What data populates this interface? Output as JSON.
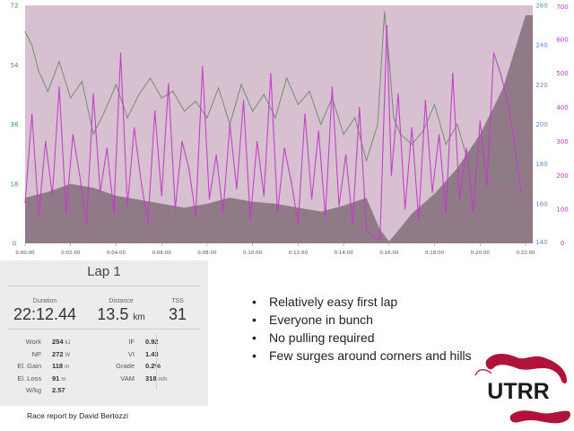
{
  "chart_data": {
    "type": "area",
    "x_ticks": [
      "0:00:00",
      "0:02:00",
      "0:04:00",
      "0:06:00",
      "0:08:00",
      "0:10:00",
      "0:12:00",
      "0:14:00",
      "0:16:00",
      "0:18:00",
      "0:20:00",
      "0:22:00"
    ],
    "left_axis": {
      "ticks": [
        "0",
        "18",
        "36",
        "54",
        "72"
      ],
      "range": [
        0,
        72
      ],
      "color": "#3c9a4a"
    },
    "right_axis_1": {
      "ticks": [
        "140",
        "160",
        "180",
        "200",
        "220",
        "240",
        "260"
      ],
      "range": [
        140,
        260
      ],
      "color": "#5a8ed0"
    },
    "right_axis_2": {
      "ticks": [
        "0",
        "100",
        "200",
        "300",
        "400",
        "500",
        "600",
        "700"
      ],
      "range": [
        0,
        700
      ],
      "color": "#c23ac9"
    },
    "series": [
      {
        "color": "#6e8a6a",
        "axis": "left",
        "x_minutes": [
          0,
          0.3,
          0.6,
          1,
          1.5,
          2,
          2.5,
          3,
          3.5,
          4,
          4.5,
          5,
          5.5,
          6,
          6.5,
          7,
          7.5,
          8,
          8.5,
          9,
          9.5,
          10,
          10.5,
          11,
          11.5,
          12,
          12.5,
          13,
          13.5,
          14,
          14.5,
          15,
          15.5,
          15.8,
          16,
          16.2,
          16.5,
          17,
          17.5,
          18,
          18.5,
          19,
          19.5,
          20,
          20.5,
          21,
          21.5,
          22
        ],
        "values": [
          64,
          60,
          52,
          46,
          55,
          44,
          49,
          33,
          40,
          48,
          38,
          45,
          50,
          44,
          46,
          40,
          43,
          38,
          47,
          36,
          48,
          40,
          45,
          38,
          50,
          42,
          46,
          36,
          44,
          33,
          38,
          25,
          36,
          70,
          56,
          38,
          33,
          30,
          34,
          42,
          30,
          36,
          24,
          28,
          22,
          19,
          21,
          28
        ]
      },
      {
        "color": "#c23ac9",
        "axis": "right_2",
        "x_minutes": [
          0,
          0.3,
          0.6,
          0.9,
          1.2,
          1.5,
          1.8,
          2.1,
          2.4,
          2.7,
          3,
          3.3,
          3.6,
          3.9,
          4.2,
          4.5,
          4.8,
          5.1,
          5.4,
          5.7,
          6,
          6.3,
          6.6,
          6.9,
          7.2,
          7.5,
          7.8,
          8.1,
          8.4,
          8.7,
          9,
          9.3,
          9.6,
          9.9,
          10.2,
          10.5,
          10.8,
          11.1,
          11.4,
          11.7,
          12,
          12.3,
          12.6,
          12.9,
          13.2,
          13.5,
          13.8,
          14.1,
          14.4,
          14.7,
          15,
          15.3,
          15.6,
          15.9,
          16.1,
          16.4,
          16.7,
          17,
          17.3,
          17.6,
          17.9,
          18.2,
          18.5,
          18.8,
          19.1,
          19.4,
          19.7,
          20,
          20.3,
          20.6,
          20.9,
          21.2,
          21.5,
          21.8
        ],
        "values": [
          120,
          380,
          80,
          300,
          140,
          460,
          90,
          320,
          200,
          60,
          440,
          150,
          280,
          90,
          560,
          110,
          340,
          180,
          60,
          390,
          140,
          470,
          100,
          300,
          220,
          80,
          520,
          130,
          260,
          90,
          350,
          160,
          420,
          70,
          300,
          140,
          500,
          90,
          280,
          180,
          60,
          380,
          130,
          330,
          80,
          460,
          110,
          260,
          60,
          400,
          40,
          20,
          10,
          640,
          200,
          440,
          100,
          340,
          70,
          420,
          150,
          320,
          90,
          500,
          130,
          280,
          90,
          360,
          170,
          560,
          500,
          420,
          300,
          150
        ]
      }
    ],
    "area": {
      "color": "#7a6270",
      "axis": "right_1",
      "x_minutes": [
        0,
        1,
        2,
        3,
        4,
        5,
        6,
        7,
        8,
        9,
        10,
        11,
        12,
        13,
        14,
        15,
        15.6,
        16,
        16.3,
        17,
        18,
        19,
        20,
        21,
        22
      ],
      "values": [
        163,
        166,
        170,
        168,
        164,
        162,
        160,
        158,
        160,
        163,
        161,
        160,
        158,
        156,
        159,
        163,
        147,
        141,
        145,
        155,
        165,
        178,
        195,
        218,
        255
      ]
    }
  },
  "lap": {
    "title": "Lap 1",
    "duration": {
      "label": "Duration",
      "value": "22:12.44"
    },
    "distance": {
      "label": "Distance",
      "value": "13.5",
      "unit": "km"
    },
    "tss": {
      "label": "TSS",
      "value": "31"
    },
    "left_metrics": [
      {
        "label": "Work",
        "value": "254",
        "unit": "kJ"
      },
      {
        "label": "NP",
        "value": "272",
        "unit": "W"
      },
      {
        "label": "El. Gain",
        "value": "118",
        "unit": "m"
      },
      {
        "label": "El. Loss",
        "value": "91",
        "unit": "m"
      },
      {
        "label": "W/kg",
        "value": "2.57",
        "unit": ""
      }
    ],
    "right_metrics": [
      {
        "label": "IF",
        "value": "0.92",
        "unit": ""
      },
      {
        "label": "VI",
        "value": "1.43",
        "unit": ""
      },
      {
        "label": "Grade",
        "value": "0.2%",
        "unit": ""
      },
      {
        "label": "VAM",
        "value": "318",
        "unit": "m/h"
      }
    ]
  },
  "bullets": [
    "Relatively easy first lap",
    "Everyone in bunch",
    "No pulling required",
    "Few surges around corners and hills"
  ],
  "caption": "Race report by David Bertozzi",
  "logo": {
    "text": "UTRR",
    "color": "#b0123a"
  }
}
